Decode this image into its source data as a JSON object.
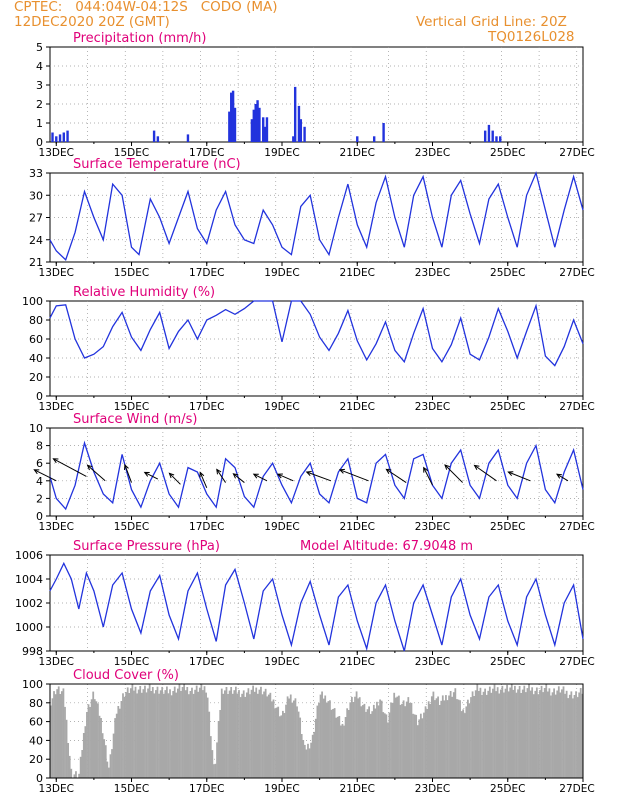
{
  "header": {
    "line1": "CPTEC:   044:04W-04:12S   CODO (MA)",
    "line2": "12DEC2020 20Z (GMT)",
    "right1": "Vertical Grid Line: 20Z",
    "right2": "TQ0126L028"
  },
  "colors": {
    "header": "#e8902f",
    "title": "#e0007a",
    "line": "#2233dd",
    "cloud": "#a8a8a8",
    "grid": "#999999"
  },
  "x_axis": {
    "start": "12DEC2020 20Z",
    "end": "27DEC2020 00Z",
    "tick_labels": [
      "13DEC",
      "15DEC",
      "17DEC",
      "19DEC",
      "21DEC",
      "23DEC",
      "25DEC",
      "27DEC"
    ],
    "tick_days": [
      13,
      15,
      17,
      19,
      21,
      23,
      25,
      27
    ]
  },
  "chart_data": [
    {
      "id": "precip",
      "type": "bar",
      "title": "Precipitation (mm/h)",
      "ylim": [
        0,
        5
      ],
      "yticks": [
        0,
        1,
        2,
        3,
        4,
        5
      ],
      "x_unit": "day of December 2020",
      "x": [
        12.9,
        13.0,
        13.1,
        13.2,
        13.3,
        15.6,
        15.7,
        16.5,
        17.6,
        17.65,
        17.7,
        17.75,
        18.2,
        18.25,
        18.3,
        18.35,
        18.4,
        18.5,
        18.55,
        18.6,
        19.3,
        19.35,
        19.45,
        19.5,
        19.6,
        21.0,
        21.45,
        21.7,
        24.4,
        24.5,
        24.6,
        24.7,
        24.8
      ],
      "values": [
        0.5,
        0.3,
        0.4,
        0.5,
        0.6,
        0.6,
        0.3,
        0.4,
        1.6,
        2.6,
        2.7,
        1.8,
        1.2,
        1.7,
        2.0,
        2.2,
        1.8,
        1.3,
        0.8,
        1.3,
        0.3,
        2.9,
        1.9,
        1.2,
        0.8,
        0.3,
        0.3,
        1.0,
        0.6,
        0.9,
        0.6,
        0.3,
        0.3
      ]
    },
    {
      "id": "temp",
      "type": "line",
      "title": "Surface Temperature (nC)",
      "ylim": [
        21,
        33
      ],
      "yticks": [
        21,
        24,
        27,
        30,
        33
      ],
      "x": [
        12.83,
        13.0,
        13.25,
        13.5,
        13.75,
        14.0,
        14.25,
        14.5,
        14.75,
        15.0,
        15.2,
        15.5,
        15.75,
        16.0,
        16.25,
        16.5,
        16.75,
        17.0,
        17.25,
        17.5,
        17.75,
        18.0,
        18.25,
        18.5,
        18.75,
        19.0,
        19.25,
        19.5,
        19.75,
        20.0,
        20.25,
        20.5,
        20.75,
        21.0,
        21.25,
        21.5,
        21.75,
        22.0,
        22.25,
        22.5,
        22.75,
        23.0,
        23.25,
        23.5,
        23.75,
        24.0,
        24.25,
        24.5,
        24.75,
        25.0,
        25.25,
        25.5,
        25.75,
        26.0,
        26.25,
        26.5,
        26.75,
        27.0
      ],
      "values": [
        24.0,
        22.5,
        21.3,
        25.0,
        30.5,
        27.0,
        24.0,
        31.5,
        30.0,
        23.0,
        22.0,
        29.5,
        27.0,
        23.5,
        27.0,
        30.5,
        25.5,
        23.5,
        28.0,
        30.5,
        26.0,
        24.0,
        23.5,
        28.0,
        26.0,
        23.0,
        22.0,
        28.5,
        30.0,
        24.0,
        22.0,
        27.0,
        31.5,
        26.0,
        23.0,
        29.0,
        32.5,
        27.0,
        23.0,
        30.0,
        32.5,
        27.0,
        23.0,
        30.0,
        32.0,
        27.5,
        23.5,
        29.5,
        31.5,
        27.0,
        23.0,
        30.0,
        33.0,
        28.0,
        23.0,
        28.0,
        32.5,
        28.0
      ]
    },
    {
      "id": "rh",
      "type": "line",
      "title": "Relative Humidity (%)",
      "ylim": [
        0,
        100
      ],
      "yticks": [
        0,
        20,
        40,
        60,
        80,
        100
      ],
      "x": [
        12.83,
        13.0,
        13.25,
        13.5,
        13.75,
        14.0,
        14.25,
        14.5,
        14.75,
        15.0,
        15.25,
        15.5,
        15.75,
        16.0,
        16.25,
        16.5,
        16.75,
        17.0,
        17.25,
        17.5,
        17.75,
        18.0,
        18.25,
        18.5,
        18.75,
        19.0,
        19.25,
        19.5,
        19.75,
        20.0,
        20.25,
        20.5,
        20.75,
        21.0,
        21.25,
        21.5,
        21.75,
        22.0,
        22.25,
        22.5,
        22.75,
        23.0,
        23.25,
        23.5,
        23.75,
        24.0,
        24.25,
        24.5,
        24.75,
        25.0,
        25.25,
        25.5,
        25.75,
        26.0,
        26.25,
        26.5,
        26.75,
        27.0
      ],
      "values": [
        82,
        95,
        96,
        60,
        40,
        44,
        52,
        73,
        88,
        62,
        48,
        70,
        88,
        50,
        68,
        80,
        60,
        80,
        85,
        91,
        86,
        92,
        100,
        100,
        100,
        57,
        100,
        100,
        86,
        62,
        48,
        66,
        90,
        58,
        38,
        55,
        78,
        48,
        36,
        66,
        92,
        50,
        36,
        54,
        82,
        44,
        38,
        62,
        92,
        68,
        40,
        68,
        95,
        42,
        32,
        52,
        80,
        55
      ]
    },
    {
      "id": "wind",
      "type": "line",
      "title": "Surface Wind (m/s)",
      "ylim": [
        0,
        10
      ],
      "yticks": [
        0,
        2,
        4,
        6,
        8,
        10
      ],
      "x": [
        12.83,
        13.0,
        13.25,
        13.5,
        13.75,
        14.0,
        14.25,
        14.5,
        14.75,
        15.0,
        15.25,
        15.5,
        15.75,
        16.0,
        16.25,
        16.5,
        16.75,
        17.0,
        17.25,
        17.5,
        17.75,
        18.0,
        18.25,
        18.5,
        18.75,
        19.0,
        19.25,
        19.5,
        19.75,
        20.0,
        20.25,
        20.5,
        20.75,
        21.0,
        21.25,
        21.5,
        21.75,
        22.0,
        22.25,
        22.5,
        22.75,
        23.0,
        23.25,
        23.5,
        23.75,
        24.0,
        24.25,
        24.5,
        24.75,
        25.0,
        25.25,
        25.5,
        25.75,
        26.0,
        26.25,
        26.5,
        26.75,
        27.0
      ],
      "values": [
        4.5,
        2.0,
        0.8,
        3.5,
        8.3,
        5.0,
        2.5,
        1.5,
        7.0,
        3.0,
        1.0,
        4.0,
        6.0,
        2.5,
        1.0,
        5.5,
        5.0,
        2.5,
        1.0,
        6.5,
        5.5,
        2.2,
        1.0,
        4.5,
        6.0,
        3.5,
        1.5,
        4.5,
        6.0,
        2.5,
        1.5,
        5.0,
        6.5,
        2.0,
        1.5,
        6.0,
        7.0,
        3.5,
        2.0,
        6.5,
        7.0,
        3.5,
        2.0,
        6.0,
        7.5,
        3.5,
        2.0,
        6.0,
        7.5,
        3.5,
        2.0,
        6.0,
        8.0,
        3.0,
        1.5,
        5.0,
        7.5,
        3.0
      ],
      "vectors": [
        {
          "x": 13.0,
          "y": 4.0,
          "u": -1.0,
          "v": 0.5
        },
        {
          "x": 13.8,
          "y": 4.5,
          "u": -1.5,
          "v": 0.8
        },
        {
          "x": 14.3,
          "y": 4.0,
          "u": -0.8,
          "v": 0.7
        },
        {
          "x": 15.0,
          "y": 3.8,
          "u": -0.3,
          "v": 0.8
        },
        {
          "x": 15.7,
          "y": 4.2,
          "u": -0.6,
          "v": 0.3
        },
        {
          "x": 16.3,
          "y": 3.6,
          "u": -0.5,
          "v": 0.5
        },
        {
          "x": 17.0,
          "y": 3.2,
          "u": -0.3,
          "v": 0.7
        },
        {
          "x": 17.5,
          "y": 3.8,
          "u": -0.4,
          "v": 0.6
        },
        {
          "x": 18.0,
          "y": 3.8,
          "u": -0.5,
          "v": 0.4
        },
        {
          "x": 18.6,
          "y": 4.0,
          "u": -0.6,
          "v": 0.3
        },
        {
          "x": 19.3,
          "y": 4.0,
          "u": -0.7,
          "v": 0.3
        },
        {
          "x": 20.3,
          "y": 4.0,
          "u": -1.1,
          "v": 0.4
        },
        {
          "x": 21.3,
          "y": 4.0,
          "u": -1.3,
          "v": 0.5
        },
        {
          "x": 22.3,
          "y": 3.8,
          "u": -0.9,
          "v": 0.6
        },
        {
          "x": 23.0,
          "y": 3.5,
          "u": -0.4,
          "v": 0.8
        },
        {
          "x": 23.8,
          "y": 3.8,
          "u": -0.8,
          "v": 0.8
        },
        {
          "x": 24.7,
          "y": 4.0,
          "u": -1.0,
          "v": 0.7
        },
        {
          "x": 25.6,
          "y": 4.0,
          "u": -1.0,
          "v": 0.4
        },
        {
          "x": 26.6,
          "y": 4.0,
          "u": -0.5,
          "v": 0.3
        }
      ]
    },
    {
      "id": "pres",
      "type": "line",
      "title": "Surface Pressure (hPa)",
      "annotation": "Model Altitude: 67.9048 m",
      "ylim": [
        998,
        1006
      ],
      "yticks": [
        998,
        1000,
        1002,
        1004,
        1006
      ],
      "x": [
        12.83,
        13.0,
        13.2,
        13.4,
        13.6,
        13.8,
        14.0,
        14.25,
        14.5,
        14.75,
        15.0,
        15.25,
        15.5,
        15.75,
        16.0,
        16.25,
        16.5,
        16.75,
        17.0,
        17.25,
        17.5,
        17.75,
        18.0,
        18.25,
        18.5,
        18.75,
        19.0,
        19.25,
        19.5,
        19.75,
        20.0,
        20.25,
        20.5,
        20.75,
        21.0,
        21.25,
        21.5,
        21.75,
        22.0,
        22.25,
        22.5,
        22.75,
        23.0,
        23.25,
        23.5,
        23.75,
        24.0,
        24.25,
        24.5,
        24.75,
        25.0,
        25.25,
        25.5,
        25.75,
        26.0,
        26.25,
        26.5,
        26.75,
        27.0
      ],
      "values": [
        1003.0,
        1004.0,
        1005.3,
        1004.0,
        1001.5,
        1004.5,
        1003.0,
        1000.0,
        1003.5,
        1004.5,
        1001.5,
        999.5,
        1003.0,
        1004.3,
        1001.0,
        999.0,
        1003.0,
        1004.5,
        1001.5,
        998.8,
        1003.5,
        1004.8,
        1002.0,
        999.0,
        1003.0,
        1004.0,
        1001.0,
        998.5,
        1002.0,
        1003.8,
        1001.0,
        998.5,
        1002.5,
        1003.5,
        1000.5,
        998.2,
        1002.0,
        1003.5,
        1000.5,
        998.0,
        1002.0,
        1003.5,
        1001.0,
        998.5,
        1002.5,
        1004.0,
        1001.0,
        999.0,
        1002.5,
        1003.5,
        1000.5,
        998.5,
        1002.5,
        1004.0,
        1001.0,
        998.5,
        1002.0,
        1003.5,
        999.0
      ]
    },
    {
      "id": "cloud",
      "type": "area",
      "title": "Cloud Cover (%)",
      "ylim": [
        0,
        100
      ],
      "yticks": [
        0,
        20,
        40,
        60,
        80,
        100
      ],
      "x": [
        12.83,
        13.0,
        13.2,
        13.4,
        13.6,
        13.8,
        14.0,
        14.2,
        14.4,
        14.6,
        14.8,
        15.0,
        15.2,
        15.4,
        15.6,
        15.8,
        16.0,
        16.2,
        16.4,
        16.6,
        16.8,
        17.0,
        17.2,
        17.4,
        17.6,
        17.8,
        18.0,
        18.2,
        18.4,
        18.6,
        18.8,
        19.0,
        19.2,
        19.4,
        19.6,
        19.8,
        20.0,
        20.2,
        20.4,
        20.6,
        20.8,
        21.0,
        21.2,
        21.4,
        21.6,
        21.8,
        22.0,
        22.2,
        22.4,
        22.6,
        22.8,
        23.0,
        23.2,
        23.4,
        23.6,
        23.8,
        24.0,
        24.2,
        24.4,
        24.6,
        24.8,
        25.0,
        25.2,
        25.4,
        25.6,
        25.8,
        26.0,
        26.2,
        26.4,
        26.6,
        26.8,
        27.0
      ],
      "values": [
        80,
        95,
        90,
        5,
        2,
        70,
        90,
        60,
        10,
        70,
        90,
        95,
        95,
        94,
        95,
        93,
        92,
        95,
        96,
        93,
        95,
        96,
        5,
        95,
        93,
        92,
        90,
        93,
        95,
        90,
        80,
        65,
        88,
        80,
        30,
        40,
        88,
        85,
        70,
        55,
        80,
        88,
        75,
        70,
        85,
        60,
        92,
        78,
        82,
        60,
        70,
        90,
        80,
        88,
        92,
        70,
        85,
        95,
        92,
        94,
        95,
        95,
        96,
        94,
        95,
        93,
        95,
        92,
        94,
        90,
        88,
        92
      ]
    }
  ]
}
